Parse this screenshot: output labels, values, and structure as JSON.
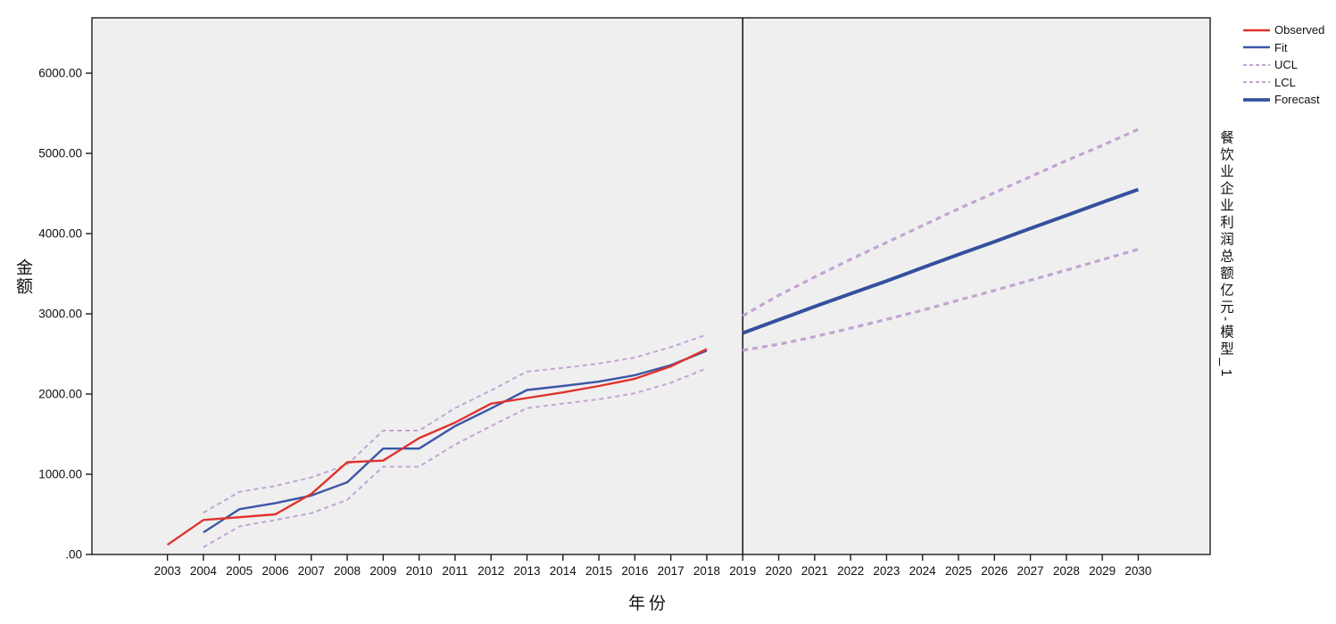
{
  "page": {
    "background": "#ffffff"
  },
  "chart_data": {
    "type": "line",
    "title": "",
    "xlabel": "年份",
    "ylabel": "金额",
    "right_axis_label": "餐饮业企业利润总额亿元-模型_1",
    "legend_position": "top-right",
    "grid": false,
    "plot_bg": "#efeff0",
    "frame_color": "#1c1c1c",
    "tick_color": "#1c1c1c",
    "divider_year": 2019,
    "xlim": [
      2000.9,
      2032.0
    ],
    "ylim": [
      0,
      6690
    ],
    "x_ticks": [
      2003,
      2004,
      2005,
      2006,
      2007,
      2008,
      2009,
      2010,
      2011,
      2012,
      2013,
      2014,
      2015,
      2016,
      2017,
      2018,
      2019,
      2020,
      2021,
      2022,
      2023,
      2024,
      2025,
      2026,
      2027,
      2028,
      2029,
      2030
    ],
    "y_ticks": [
      {
        "label": "6000.00",
        "value": 6000
      },
      {
        "label": "5000.00",
        "value": 5000
      },
      {
        "label": "4000.00",
        "value": 4000
      },
      {
        "label": "3000.00",
        "value": 3000
      },
      {
        "label": "2000.00",
        "value": 2000
      },
      {
        "label": "1000.00",
        "value": 1000
      },
      {
        "label": ".00",
        "value": 0
      }
    ],
    "legend": [
      {
        "label": "Observed",
        "color": "#e1322c",
        "dash": "",
        "width": 2.4
      },
      {
        "label": "Fit",
        "color": "#3c56a6",
        "dash": "",
        "width": 2.4
      },
      {
        "label": "UCL",
        "color": "#c2a4d2",
        "dash": "4 3",
        "width": 2
      },
      {
        "label": "LCL",
        "color": "#c2a4d2",
        "dash": "4 3",
        "width": 2
      },
      {
        "label": "Forecast",
        "color": "#34509e",
        "dash": "",
        "width": 3.8
      }
    ],
    "series": [
      {
        "name": "ucl-historical",
        "color": "#c2a4d2",
        "dash": "5 4",
        "width": 2,
        "x": [
          2004,
          2005,
          2006,
          2007,
          2008,
          2009,
          2010,
          2011,
          2012,
          2013,
          2014,
          2015,
          2016,
          2017,
          2018
        ],
        "values": [
          520,
          780,
          855,
          960,
          1120,
          1545,
          1545,
          1825,
          2045,
          2280,
          2325,
          2380,
          2455,
          2585,
          2740
        ]
      },
      {
        "name": "lcl-historical",
        "color": "#c2a4d2",
        "dash": "5 4",
        "width": 2,
        "x": [
          2004,
          2005,
          2006,
          2007,
          2008,
          2009,
          2010,
          2011,
          2012,
          2013,
          2014,
          2015,
          2016,
          2017,
          2018
        ],
        "values": [
          90,
          350,
          430,
          515,
          680,
          1095,
          1095,
          1370,
          1600,
          1825,
          1880,
          1935,
          2010,
          2140,
          2320
        ]
      },
      {
        "name": "ucl-forecast",
        "color": "#c2a4d2",
        "dash": "6 5",
        "width": 3.2,
        "x": [
          2019,
          2020,
          2021,
          2022,
          2023,
          2024,
          2025,
          2026,
          2027,
          2028,
          2029,
          2030
        ],
        "values": [
          2975,
          3230,
          3460,
          3680,
          3890,
          4100,
          4310,
          4510,
          4710,
          4910,
          5100,
          5300
        ]
      },
      {
        "name": "lcl-forecast",
        "color": "#c2a4d2",
        "dash": "6 5",
        "width": 3.2,
        "x": [
          2019,
          2020,
          2021,
          2022,
          2023,
          2024,
          2025,
          2026,
          2027,
          2028,
          2029,
          2030
        ],
        "values": [
          2545,
          2620,
          2715,
          2820,
          2930,
          3045,
          3170,
          3290,
          3420,
          3545,
          3675,
          3805
        ]
      },
      {
        "name": "fit",
        "color": "#3c56a6",
        "dash": "",
        "width": 2.4,
        "x": [
          2004,
          2005,
          2006,
          2007,
          2008,
          2009,
          2010,
          2011,
          2012,
          2013,
          2014,
          2015,
          2016,
          2017,
          2018
        ],
        "values": [
          275,
          565,
          640,
          735,
          900,
          1320,
          1320,
          1600,
          1820,
          2050,
          2100,
          2155,
          2235,
          2360,
          2540
        ]
      },
      {
        "name": "observed",
        "color": "#e1322c",
        "dash": "",
        "width": 2.4,
        "x": [
          2003,
          2004,
          2005,
          2006,
          2007,
          2008,
          2009,
          2010,
          2011,
          2012,
          2013,
          2014,
          2015,
          2016,
          2017,
          2018
        ],
        "values": [
          120,
          430,
          465,
          500,
          755,
          1150,
          1170,
          1450,
          1645,
          1880,
          1950,
          2020,
          2100,
          2190,
          2345,
          2560
        ]
      },
      {
        "name": "forecast",
        "color": "#34509e",
        "dash": "",
        "width": 4,
        "x": [
          2019,
          2020,
          2021,
          2022,
          2023,
          2024,
          2025,
          2026,
          2027,
          2028,
          2029,
          2030
        ],
        "values": [
          2760,
          2925,
          3090,
          3250,
          3410,
          3575,
          3740,
          3900,
          4065,
          4225,
          4390,
          4550
        ]
      }
    ]
  }
}
